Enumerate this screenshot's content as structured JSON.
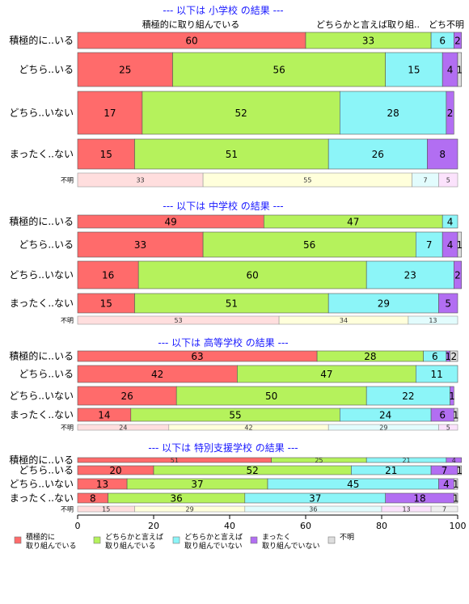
{
  "chart_data": {
    "type": "bar",
    "orientation": "horizontal-stacked-percent",
    "categories": [
      "積極的に取り組んでいる",
      "どちらかと言えば取り組んでいる",
      "どちらかと言えば取り組んでいない",
      "まったく取り組んでいない",
      "不明"
    ],
    "colors": [
      "#ff6b6b",
      "#b5f25c",
      "#8cf5f8",
      "#b26ef2",
      "#dedede"
    ],
    "xlim": [
      0,
      100
    ],
    "xticks": [
      "0",
      "20",
      "40",
      "60",
      "80",
      "100"
    ],
    "legend_position": "bottom",
    "legend": [
      {
        "line1": "積極的に",
        "line2": "取り組んでいる"
      },
      {
        "line1": "どちらかと言えば",
        "line2": "取り組んでいる"
      },
      {
        "line1": "どちらかと言えば",
        "line2": "取り組んでいない"
      },
      {
        "line1": "まったく",
        "line2": "取り組んでいない"
      },
      {
        "line1": "不明",
        "line2": ""
      }
    ],
    "header_labels": [
      "積極的に取り組んでいる",
      "どちらかと言えば取り組..",
      "どち",
      "不明"
    ],
    "panels": [
      {
        "title": "--- 以下は 小学校 の結果 ---",
        "rows": [
          {
            "label": "積極的に..いる",
            "values": [
              60,
              33,
              6,
              2,
              0
            ]
          },
          {
            "label": "どちら..いる",
            "values": [
              25,
              56,
              15,
              4,
              1
            ]
          },
          {
            "label": "どちら..いない",
            "values": [
              17,
              52,
              28,
              2,
              0
            ]
          },
          {
            "label": "まったく..ない",
            "values": [
              15,
              51,
              26,
              8,
              0
            ]
          },
          {
            "label": "不明",
            "values": [
              33,
              55,
              7,
              5,
              0
            ]
          }
        ]
      },
      {
        "title": "--- 以下は 中学校 の結果 ---",
        "rows": [
          {
            "label": "積極的に..いる",
            "values": [
              49,
              47,
              4,
              0,
              0
            ]
          },
          {
            "label": "どちら..いる",
            "values": [
              33,
              56,
              7,
              4,
              1
            ]
          },
          {
            "label": "どちら..いない",
            "values": [
              16,
              60,
              23,
              2,
              0
            ]
          },
          {
            "label": "まったく..ない",
            "values": [
              15,
              51,
              29,
              5,
              0
            ]
          },
          {
            "label": "不明",
            "values": [
              53,
              34,
              13,
              0,
              0
            ]
          }
        ]
      },
      {
        "title": "--- 以下は 高等学校 の結果 ---",
        "rows": [
          {
            "label": "積極的に..いる",
            "values": [
              63,
              28,
              6,
              1,
              2
            ]
          },
          {
            "label": "どちら..いる",
            "values": [
              42,
              47,
              11,
              0,
              0
            ]
          },
          {
            "label": "どちら..いない",
            "values": [
              26,
              50,
              22,
              1,
              0
            ]
          },
          {
            "label": "まったく..ない",
            "values": [
              14,
              55,
              24,
              6,
              1
            ]
          },
          {
            "label": "不明",
            "values": [
              24,
              42,
              29,
              5,
              0
            ]
          }
        ]
      },
      {
        "title": "--- 以下は 特別支援学校 の結果 ---",
        "rows": [
          {
            "label": "積極的に..いる",
            "values": [
              51,
              25,
              21,
              4,
              0
            ]
          },
          {
            "label": "どちら..いる",
            "values": [
              20,
              52,
              21,
              7,
              1
            ]
          },
          {
            "label": "どちら..いない",
            "values": [
              13,
              37,
              45,
              4,
              1
            ]
          },
          {
            "label": "まったく..ない",
            "values": [
              8,
              36,
              37,
              18,
              1
            ]
          },
          {
            "label": "不明",
            "values": [
              15,
              29,
              36,
              13,
              7
            ]
          }
        ]
      }
    ]
  }
}
